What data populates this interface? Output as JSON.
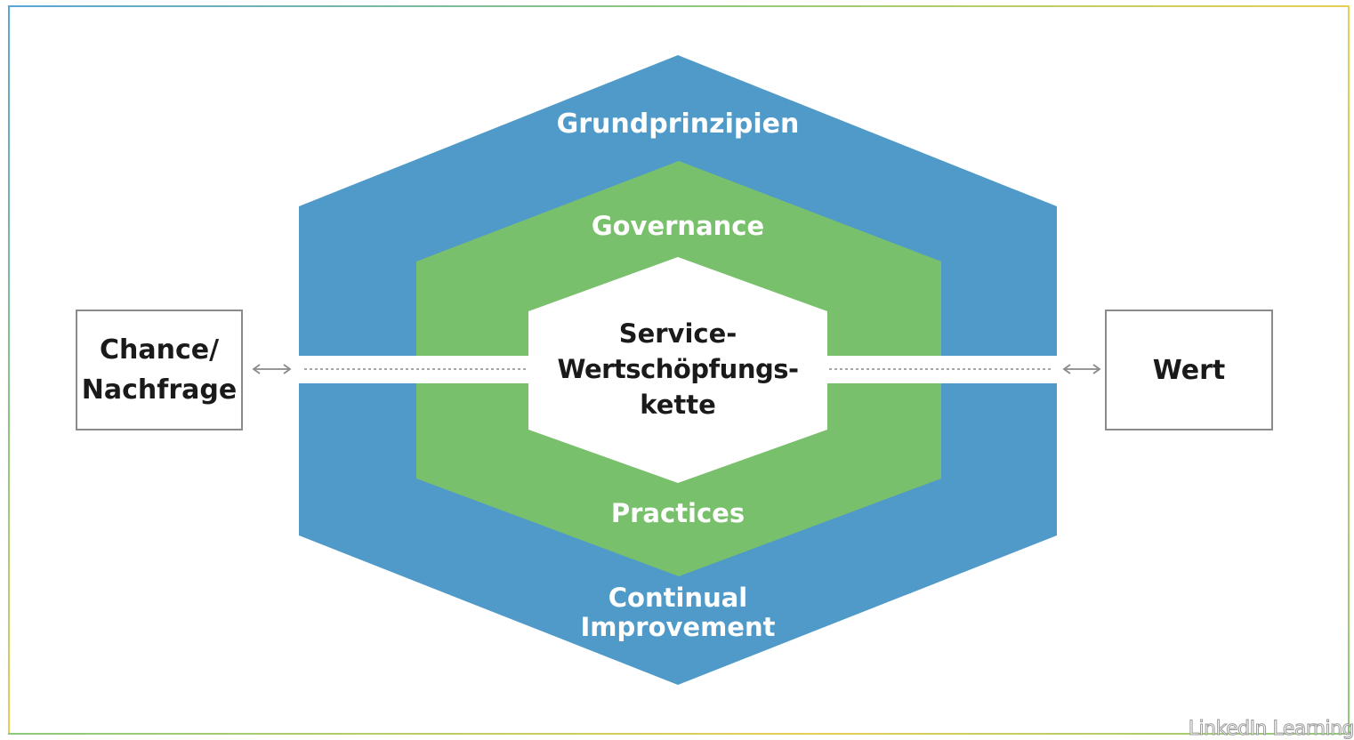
{
  "diagram": {
    "outer_ring": {
      "label": "Grundprinzipien",
      "color": "#4f9ac9"
    },
    "middle_ring": {
      "top_label": "Governance",
      "bottom_label": "Practices",
      "color": "#79c06c"
    },
    "outer_bottom_label": [
      "Continual",
      "Improvement"
    ],
    "center": {
      "lines": [
        "Service-",
        "Wertschöpfungs-",
        "kette"
      ]
    },
    "left_box": {
      "lines": [
        "Chance/",
        "Nachfrage"
      ]
    },
    "right_box": {
      "lines": [
        "Wert"
      ]
    },
    "frame_colors": [
      "#5aa5d8",
      "#8cc97a",
      "#e8cf55"
    ]
  },
  "watermark": "LinkedIn Learning"
}
